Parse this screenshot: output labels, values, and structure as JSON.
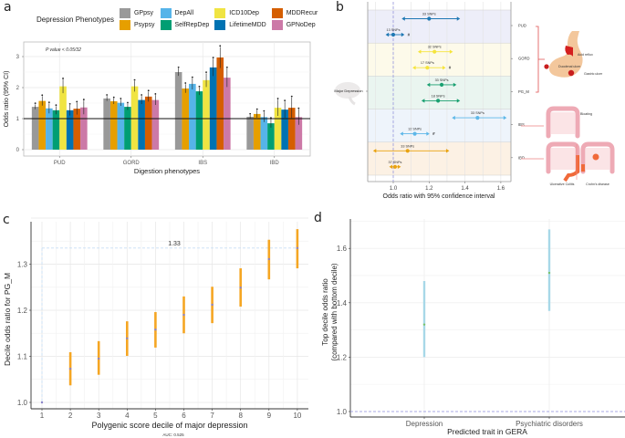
{
  "panels": {
    "a": "a",
    "b": "b",
    "c": "c",
    "d": "d"
  },
  "legend": {
    "title": "Depression Phenotypes",
    "items": [
      {
        "label": "GPpsy",
        "color": "#999999"
      },
      {
        "label": "Psypsy",
        "color": "#E69F00"
      },
      {
        "label": "DepAll",
        "color": "#56B4E9"
      },
      {
        "label": "SelfRepDep",
        "color": "#009E73"
      },
      {
        "label": "ICD10Dep",
        "color": "#F0E442"
      },
      {
        "label": "LifetimeMDD",
        "color": "#0072B2"
      },
      {
        "label": "MDDRecur",
        "color": "#D55E00"
      },
      {
        "label": "GPNoDep",
        "color": "#CC79A7"
      }
    ]
  },
  "chart_data": [
    {
      "id": "a",
      "type": "bar",
      "title": "",
      "annotation": "P value < 0.05/32",
      "xlabel": "Digestion phenotypes",
      "ylabel": "Odds ratio (95% CI)",
      "ylim": [
        0,
        3.4
      ],
      "yticks": [
        0,
        1,
        2,
        3
      ],
      "reference_line": 1,
      "grid": true,
      "categories": [
        "PUD",
        "GORD",
        "IBS",
        "IBD"
      ],
      "series": [
        {
          "name": "GPpsy",
          "values": [
            1.38,
            1.65,
            2.5,
            1.06
          ],
          "err": [
            0.08,
            0.08,
            0.12,
            0.06
          ]
        },
        {
          "name": "Psypsy",
          "values": [
            1.57,
            1.56,
            1.97,
            1.15
          ],
          "err": [
            0.15,
            0.09,
            0.14,
            0.12
          ]
        },
        {
          "name": "DepAll",
          "values": [
            1.33,
            1.51,
            2.12,
            1.05
          ],
          "err": [
            0.16,
            0.1,
            0.18,
            0.16
          ]
        },
        {
          "name": "SelfRepDep",
          "values": [
            1.27,
            1.38,
            1.88,
            0.85
          ],
          "err": [
            0.13,
            0.1,
            0.12,
            0.14
          ]
        },
        {
          "name": "ICD10Dep",
          "values": [
            2.04,
            2.04,
            2.24,
            1.35
          ],
          "err": [
            0.22,
            0.17,
            0.22,
            0.26
          ]
        },
        {
          "name": "LifetimeMDD",
          "values": [
            1.27,
            1.6,
            2.65,
            1.29
          ],
          "err": [
            0.17,
            0.13,
            0.28,
            0.26
          ]
        },
        {
          "name": "MDDRecur",
          "values": [
            1.32,
            1.71,
            2.97,
            1.35
          ],
          "err": [
            0.19,
            0.16,
            0.34,
            0.33
          ]
        },
        {
          "name": "GPNoDep",
          "values": [
            1.36,
            1.6,
            2.32,
            1.05
          ],
          "err": [
            0.22,
            0.16,
            0.3,
            0.25
          ]
        }
      ]
    },
    {
      "id": "b",
      "type": "scatter",
      "subtype": "forest",
      "xlabel": "Odds ratio with 95% confidence interval",
      "xlim": [
        0.86,
        1.66
      ],
      "xticks": [
        1.0,
        1.2,
        1.4,
        1.6
      ],
      "xtick_labels": [
        "1.0",
        "1.2",
        "1.4",
        "1.6"
      ],
      "reference_line": 1.0,
      "exposure_label": "Major Depression",
      "groups": [
        {
          "name": "PUD",
          "band_color": "#EDEEF9",
          "color": "#1F78B4",
          "rows": [
            {
              "label": "33 SNPs",
              "or": 1.2,
              "lo": 1.06,
              "hi": 1.36,
              "mark": ""
            },
            {
              "label": "13 SNPs",
              "or": 1.0,
              "lo": 0.97,
              "hi": 1.05,
              "mark": "#"
            }
          ]
        },
        {
          "name": "GORD",
          "band_color": "#FDFAEA",
          "color": "#F5E43C",
          "rows": [
            {
              "label": "32 SNPs",
              "or": 1.23,
              "lo": 1.15,
              "hi": 1.32,
              "mark": ""
            },
            {
              "label": "17 SNPs",
              "or": 1.19,
              "lo": 1.12,
              "hi": 1.28,
              "mark": "#"
            }
          ]
        },
        {
          "name": "PG_M",
          "band_color": "#EAF5F0",
          "color": "#1AA071",
          "rows": [
            {
              "label": "33 SNPs",
              "or": 1.27,
              "lo": 1.2,
              "hi": 1.34,
              "mark": ""
            },
            {
              "label": "18 SNPs",
              "or": 1.25,
              "lo": 1.17,
              "hi": 1.36,
              "mark": ""
            }
          ]
        },
        {
          "name": "IBS",
          "band_color": "#EEF4FB",
          "color": "#5DB7E8",
          "rows": [
            {
              "label": "33 SNPs",
              "or": 1.47,
              "lo": 1.34,
              "hi": 1.62,
              "mark": ""
            },
            {
              "label": "12 SNPs",
              "or": 1.12,
              "lo": 1.05,
              "hi": 1.19,
              "mark": "#"
            }
          ]
        },
        {
          "name": "IBD",
          "band_color": "#FCF1E4",
          "color": "#E9A20F",
          "rows": [
            {
              "label": "33 SNPs",
              "or": 1.08,
              "lo": 0.9,
              "hi": 1.3,
              "mark": ""
            },
            {
              "label": "37 SNPs",
              "or": 1.01,
              "lo": 0.99,
              "hi": 1.03,
              "mark": ""
            }
          ]
        }
      ],
      "illustration_labels": {
        "acid_reflux": "Acid reflux",
        "duodenal_ulcer": "Duodenal ulcer",
        "gastric_ulcer": "Gastric ulcer",
        "bloating": "Bloating",
        "ulcerative_colitis": "Ulcerative Colitis",
        "crohns": "Crohn's disease"
      }
    },
    {
      "id": "c",
      "type": "scatter",
      "subtype": "errorbar",
      "xlabel": "Polygenic score decile of major depression",
      "ylabel": "Decile odds ratio for PG_M",
      "note": "AUC: 0.525",
      "annotation": "1.33",
      "xlim": [
        0.7,
        10.3
      ],
      "ylim": [
        0.99,
        1.405
      ],
      "xticks": [
        1,
        2,
        3,
        4,
        5,
        6,
        7,
        8,
        9,
        10
      ],
      "yticks": [
        1.0,
        1.1,
        1.2,
        1.3
      ],
      "ytick_labels": [
        "1.0",
        "1.1",
        "1.2",
        "1.3"
      ],
      "grid": true,
      "x": [
        1,
        2,
        3,
        4,
        5,
        6,
        7,
        8,
        9,
        10
      ],
      "y": [
        1.0,
        1.073,
        1.095,
        1.139,
        1.158,
        1.19,
        1.212,
        1.249,
        1.311,
        1.335
      ],
      "lo": [
        null,
        1.037,
        1.06,
        1.101,
        1.119,
        1.15,
        1.172,
        1.208,
        1.267,
        1.291
      ],
      "hi": [
        null,
        1.109,
        1.133,
        1.176,
        1.196,
        1.23,
        1.251,
        1.291,
        1.353,
        1.376
      ]
    },
    {
      "id": "d",
      "type": "scatter",
      "subtype": "errorbar",
      "xlabel": "Predicted trait in GERA",
      "ylabel_line1": "Top decile odds ratio",
      "ylabel_line2": "(compared with bottom decile)",
      "categories": [
        "Depression",
        "Psychiatric disorders"
      ],
      "ylim": [
        0.98,
        1.71
      ],
      "yticks": [
        1.0,
        1.2,
        1.4,
        1.6
      ],
      "ytick_labels": [
        "1.0",
        "1.2",
        "1.4",
        "1.6"
      ],
      "reference_line": 1.0,
      "grid": true,
      "values": [
        1.32,
        1.51
      ],
      "lo": [
        1.2,
        1.37
      ],
      "hi": [
        1.48,
        1.67
      ]
    }
  ]
}
